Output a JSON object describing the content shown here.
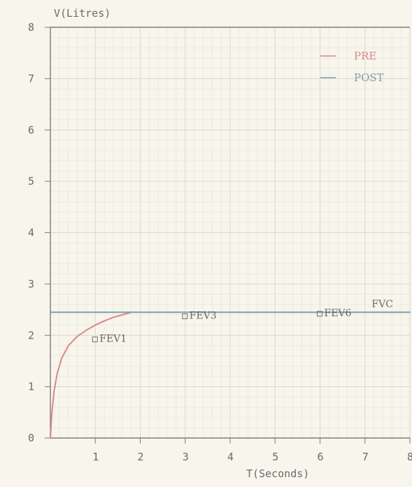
{
  "chart_data": {
    "type": "line",
    "title": "",
    "xlabel": "T(Seconds)",
    "ylabel": "V(Litres)",
    "xlim": [
      0,
      8
    ],
    "ylim": [
      0,
      8
    ],
    "x_ticks": [
      "1",
      "2",
      "3",
      "4",
      "5",
      "6",
      "7",
      "8"
    ],
    "y_ticks": [
      "0",
      "1",
      "2",
      "3",
      "4",
      "5",
      "6",
      "7",
      "8"
    ],
    "grid": true,
    "legend_position": "top-right",
    "series": [
      {
        "name": "PRE",
        "color": "#d98888",
        "x": [
          0,
          0.03,
          0.08,
          0.15,
          0.25,
          0.4,
          0.6,
          0.8,
          1.0,
          1.2,
          1.4,
          1.6,
          1.8
        ],
        "y": [
          0,
          0.45,
          0.9,
          1.25,
          1.55,
          1.8,
          1.98,
          2.1,
          2.2,
          2.28,
          2.35,
          2.4,
          2.45
        ]
      },
      {
        "name": "POST",
        "color": "#7f9fae",
        "x": [
          0,
          8
        ],
        "y": [
          2.45,
          2.45
        ]
      }
    ],
    "annotations": [
      {
        "label": "FEV1",
        "x": 1.0,
        "y": 1.9,
        "marker": true
      },
      {
        "label": "FEV3",
        "x": 3.0,
        "y": 2.35,
        "marker": true
      },
      {
        "label": "FEV6",
        "x": 6.0,
        "y": 2.4,
        "marker": true
      },
      {
        "label": "FVC",
        "x": 7.15,
        "y": 2.55,
        "marker": false
      }
    ],
    "colors": {
      "background": "#f7f5ec",
      "grid_minor": "#ebe7d9",
      "grid_major": "#ddd8c6",
      "axis": "#7b7b7b",
      "text": "#6b6b6b"
    }
  }
}
